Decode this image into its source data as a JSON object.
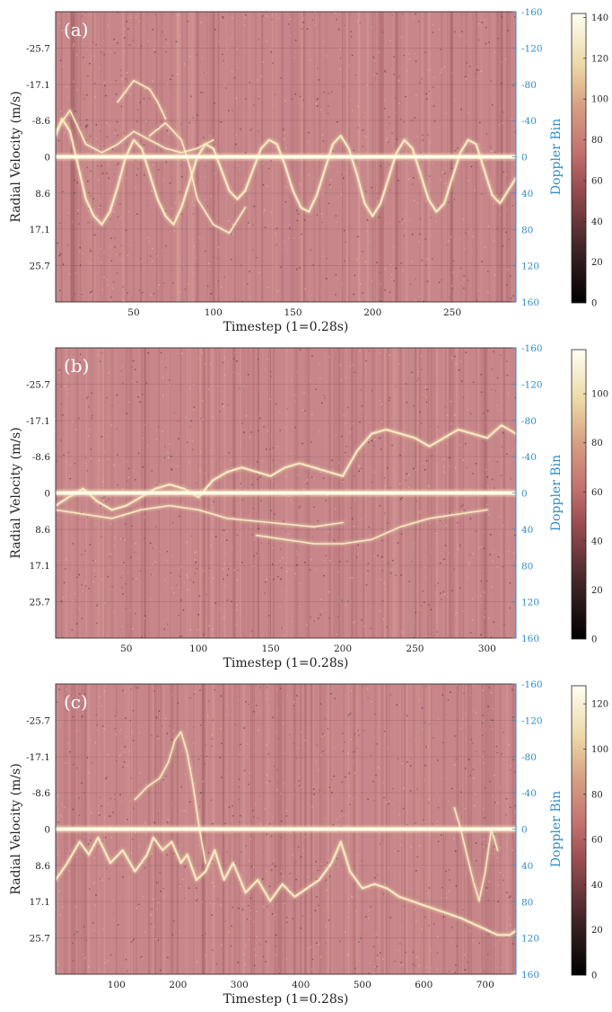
{
  "chart_data": [
    {
      "type": "heatmap",
      "panel_label": "(a)",
      "xlabel": "Timestep (1=0.28s)",
      "ylabel": "Radial Velocity (m/s)",
      "y2label": "Doppler Bin",
      "xlim": [
        1,
        290
      ],
      "xticks": [
        50,
        100,
        150,
        200,
        250
      ],
      "yticks": [
        {
          "value": -25.7,
          "label": "-25.7"
        },
        {
          "value": -17.1,
          "label": "-17.1"
        },
        {
          "value": -8.6,
          "label": "-8.6"
        },
        {
          "value": 0,
          "label": "0"
        },
        {
          "value": 8.6,
          "label": "8.6"
        },
        {
          "value": 17.1,
          "label": "17.1"
        },
        {
          "value": 25.7,
          "label": "25.7"
        }
      ],
      "y2ticks": [
        "-160",
        "-120",
        "-80",
        "-40",
        "0",
        "40",
        "80",
        "120",
        "160"
      ],
      "colorbar": {
        "min": 0,
        "max": 142,
        "ticks": [
          "0",
          "20",
          "40",
          "60",
          "80",
          "100",
          "120",
          "140"
        ],
        "tick_values": [
          0,
          20,
          40,
          60,
          80,
          100,
          120,
          140
        ]
      },
      "traces": [
        {
          "x": [
            1,
            5,
            10,
            15,
            20,
            25,
            30,
            35,
            40,
            45,
            50,
            55,
            60,
            65,
            70,
            75,
            80,
            85,
            90,
            95,
            100,
            105,
            110,
            115,
            120,
            125,
            130,
            135,
            140,
            145,
            150,
            155,
            160,
            165,
            170,
            175,
            180,
            185,
            190,
            195,
            200,
            205,
            210,
            215,
            220,
            225,
            230,
            235,
            240,
            245,
            250,
            255,
            260,
            265,
            270,
            275,
            280,
            285,
            290
          ],
          "y": [
            -5,
            -9,
            -6,
            2,
            10,
            14,
            16,
            13,
            7,
            0,
            -4,
            -2,
            4,
            10,
            14,
            16,
            12,
            6,
            0,
            -3,
            -2,
            3,
            8,
            10,
            8,
            3,
            -2,
            -4,
            -3,
            2,
            8,
            12,
            13,
            9,
            3,
            -3,
            -5,
            -2,
            4,
            11,
            14,
            11,
            5,
            -1,
            -4,
            -2,
            4,
            10,
            13,
            11,
            5,
            -1,
            -4,
            -3,
            3,
            9,
            11,
            8,
            5
          ]
        },
        {
          "x": [
            1,
            10,
            20,
            30,
            40,
            50,
            60,
            70,
            80,
            90,
            100
          ],
          "y": [
            -6,
            -11,
            -3,
            -1,
            -3,
            -6,
            -4,
            -2,
            -1,
            -2,
            -4
          ]
        },
        {
          "x": [
            60,
            70,
            80,
            85,
            90,
            100,
            110,
            120
          ],
          "y": [
            -5,
            -8,
            -4,
            2,
            10,
            16,
            18,
            12
          ]
        },
        {
          "x": [
            40,
            50,
            60,
            65,
            70
          ],
          "y": [
            -13,
            -18,
            -16,
            -13,
            -9
          ]
        }
      ]
    },
    {
      "type": "heatmap",
      "panel_label": "(b)",
      "xlabel": "Timestep (1=0.28s)",
      "ylabel": "Radial Velocity (m/s)",
      "y2label": "Doppler Bin",
      "xlim": [
        1,
        320
      ],
      "xticks": [
        50,
        100,
        150,
        200,
        250,
        300
      ],
      "yticks": [
        {
          "value": -25.7,
          "label": "-25.7"
        },
        {
          "value": -17.1,
          "label": "-17.1"
        },
        {
          "value": -8.6,
          "label": "-8.6"
        },
        {
          "value": 0,
          "label": "0"
        },
        {
          "value": 8.6,
          "label": "8.6"
        },
        {
          "value": 17.1,
          "label": "17.1"
        },
        {
          "value": 25.7,
          "label": "25.7"
        }
      ],
      "y2ticks": [
        "-160",
        "-120",
        "-80",
        "-40",
        "0",
        "40",
        "80",
        "120",
        "160"
      ],
      "colorbar": {
        "min": 0,
        "max": 118,
        "ticks": [
          "0",
          "20",
          "40",
          "60",
          "80",
          "100"
        ],
        "tick_values": [
          0,
          20,
          40,
          60,
          80,
          100
        ]
      },
      "traces": [
        {
          "x": [
            1,
            10,
            20,
            30,
            40,
            50,
            60,
            70,
            80,
            90,
            100,
            110,
            120,
            130,
            140,
            150,
            160,
            170,
            180,
            190,
            200,
            210,
            220,
            230,
            240,
            250,
            260,
            270,
            280,
            290,
            300,
            310,
            320
          ],
          "y": [
            3,
            1,
            -1,
            2,
            4,
            3,
            1,
            -1,
            -2,
            -1,
            1,
            -3,
            -5,
            -6,
            -5,
            -4,
            -6,
            -7,
            -6,
            -5,
            -4,
            -10,
            -14,
            -15,
            -14,
            -13,
            -11,
            -13,
            -15,
            -14,
            -13,
            -16,
            -14
          ]
        },
        {
          "x": [
            1,
            20,
            40,
            60,
            80,
            100,
            120,
            150,
            180,
            200
          ],
          "y": [
            4,
            5,
            6,
            4,
            3,
            4,
            6,
            7,
            8,
            7
          ]
        },
        {
          "x": [
            140,
            160,
            180,
            200,
            220,
            240,
            260,
            280,
            300
          ],
          "y": [
            10,
            11,
            12,
            12,
            11,
            8,
            6,
            5,
            4
          ]
        }
      ]
    },
    {
      "type": "heatmap",
      "panel_label": "(c)",
      "xlabel": "Timestep (1=0.28s)",
      "ylabel": "Radial Velocity (m/s)",
      "y2label": "Doppler Bin",
      "xlim": [
        1,
        750
      ],
      "xticks": [
        100,
        200,
        300,
        400,
        500,
        600,
        700
      ],
      "yticks": [
        {
          "value": -25.7,
          "label": "-25.7"
        },
        {
          "value": -17.1,
          "label": "-17.1"
        },
        {
          "value": -8.6,
          "label": "-8.6"
        },
        {
          "value": 0,
          "label": "0"
        },
        {
          "value": 8.6,
          "label": "8.6"
        },
        {
          "value": 17.1,
          "label": "17.1"
        },
        {
          "value": 25.7,
          "label": "25.7"
        }
      ],
      "y2ticks": [
        "-160",
        "-120",
        "-80",
        "-40",
        "0",
        "40",
        "80",
        "120",
        "160"
      ],
      "colorbar": {
        "min": 0,
        "max": 128,
        "ticks": [
          "0",
          "20",
          "40",
          "60",
          "80",
          "100",
          "120"
        ],
        "tick_values": [
          0,
          20,
          40,
          60,
          80,
          100,
          120
        ]
      },
      "traces": [
        {
          "x": [
            1,
            20,
            40,
            55,
            70,
            90,
            110,
            130,
            150,
            160,
            175,
            190,
            205,
            215,
            230,
            245,
            260,
            275,
            290,
            310,
            330,
            350,
            370,
            390,
            410,
            430,
            450,
            465,
            480,
            500,
            520,
            540,
            560,
            580,
            600,
            620,
            640,
            660,
            675,
            690,
            705,
            720,
            740,
            750
          ],
          "y": [
            12,
            8,
            3,
            6,
            2,
            8,
            5,
            10,
            6,
            2,
            5,
            3,
            8,
            6,
            12,
            10,
            5,
            12,
            8,
            15,
            12,
            17,
            13,
            16,
            14,
            12,
            8,
            3,
            10,
            14,
            13,
            14,
            16,
            17,
            18,
            19,
            20,
            21,
            22,
            23,
            24,
            25,
            25,
            24
          ]
        },
        {
          "x": [
            130,
            150,
            170,
            185,
            195,
            205,
            215,
            225,
            235,
            245
          ],
          "y": [
            -7,
            -10,
            -12,
            -16,
            -21,
            -23,
            -18,
            -10,
            0,
            8
          ]
        },
        {
          "x": [
            650,
            660,
            670,
            680,
            690,
            700,
            710,
            720
          ],
          "y": [
            -5,
            0,
            6,
            12,
            17,
            10,
            0,
            5
          ]
        }
      ]
    }
  ]
}
